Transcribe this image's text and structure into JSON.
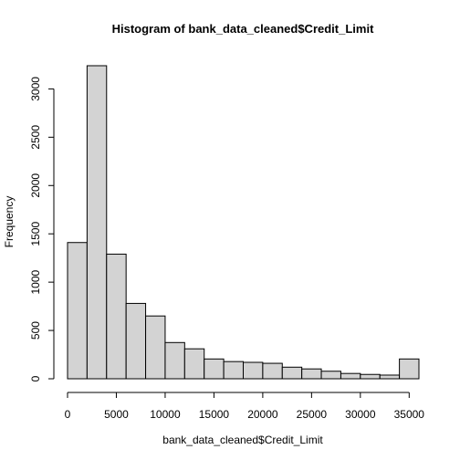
{
  "chart_data": {
    "type": "bar",
    "title": "Histogram of bank_data_cleaned$Credit_Limit",
    "xlabel": "bank_data_cleaned$Credit_Limit",
    "ylabel": "Frequency",
    "bin_edges": [
      0,
      2000,
      4000,
      6000,
      8000,
      10000,
      12000,
      14000,
      16000,
      18000,
      20000,
      22000,
      24000,
      26000,
      28000,
      30000,
      32000,
      34000,
      36000
    ],
    "values": [
      1410,
      3240,
      1290,
      780,
      650,
      375,
      310,
      205,
      178,
      170,
      160,
      120,
      102,
      78,
      55,
      45,
      38,
      205
    ],
    "xlim": [
      0,
      36000
    ],
    "ylim": [
      0,
      3240
    ],
    "x_ticks": [
      0,
      5000,
      10000,
      15000,
      20000,
      25000,
      30000,
      35000
    ],
    "y_ticks": [
      0,
      500,
      1000,
      1500,
      2000,
      2500,
      3000
    ],
    "grid": false,
    "colors": {
      "bar_fill": "#d3d3d3",
      "bar_stroke": "#000000"
    }
  }
}
